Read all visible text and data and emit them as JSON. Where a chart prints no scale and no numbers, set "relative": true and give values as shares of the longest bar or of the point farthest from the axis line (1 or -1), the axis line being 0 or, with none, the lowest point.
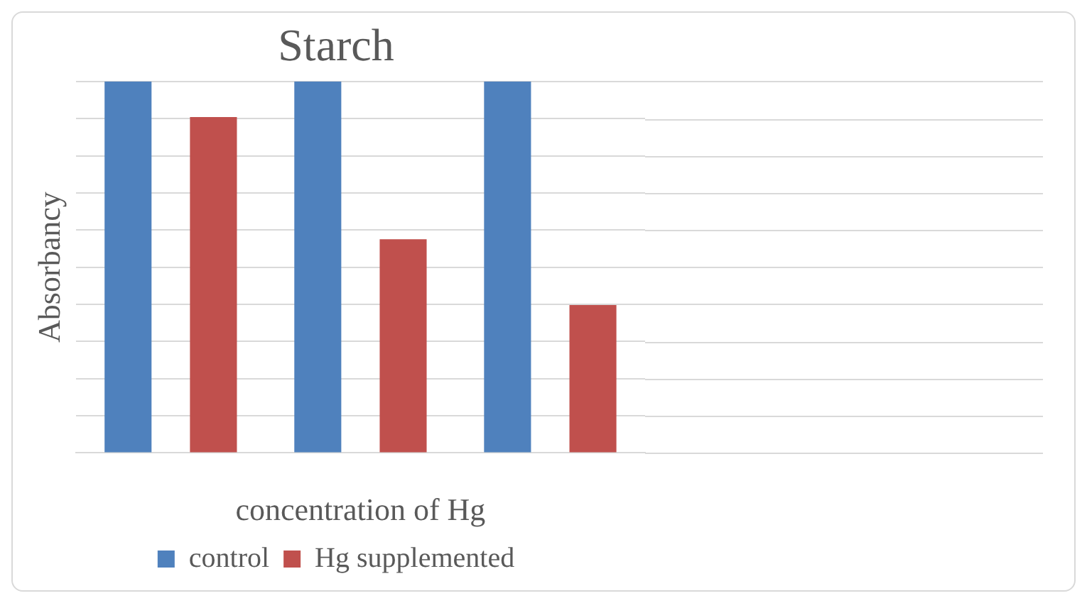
{
  "chart_data": {
    "type": "bar",
    "title": "Starch",
    "xlabel": "concentration of Hg",
    "ylabel": "Absorbancy",
    "categories": [
      null,
      null,
      null
    ],
    "series": [
      {
        "name": "control",
        "color": "#4f81bd",
        "values": [
          1,
          1,
          1
        ]
      },
      {
        "name": "Hg supplemented",
        "color": "#c0504d",
        "values": [
          0.904,
          0.575,
          0.398
        ]
      }
    ],
    "relative": true,
    "grid": "y",
    "legend": "bottom"
  }
}
